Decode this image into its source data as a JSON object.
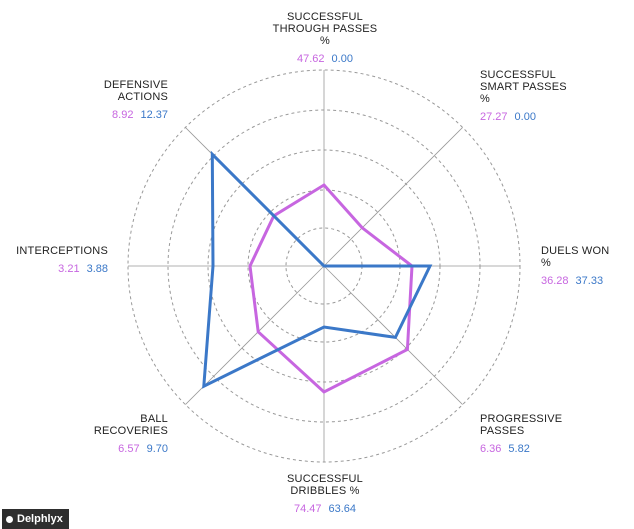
{
  "chart_data": {
    "type": "radar",
    "axes": [
      {
        "label": [
          "SUCCESSFUL",
          "THROUGH PASSES",
          "%"
        ],
        "values": [
          "47.62",
          "0.00"
        ],
        "scale": [
          81,
          0
        ]
      },
      {
        "label": [
          "SUCCESSFUL",
          "SMART PASSES",
          "%"
        ],
        "values": [
          "27.27",
          "0.00"
        ],
        "scale": [
          54,
          0
        ]
      },
      {
        "label": [
          "DUELS WON",
          "%"
        ],
        "values": [
          "36.28",
          "37.33"
        ],
        "scale": [
          88,
          106
        ]
      },
      {
        "label": [
          "PROGRESSIVE",
          "PASSES"
        ],
        "values": [
          "6.36",
          "5.82"
        ],
        "scale": [
          118,
          101
        ]
      },
      {
        "label": [
          "SUCCESSFUL",
          "DRIBBLES %"
        ],
        "values": [
          "74.47",
          "63.64"
        ],
        "scale": [
          126,
          61
        ]
      },
      {
        "label": [
          "BALL",
          "RECOVERIES"
        ],
        "values": [
          "6.57",
          "9.70"
        ],
        "scale": [
          93,
          170
        ]
      },
      {
        "label": [
          "INTERCEPTIONS"
        ],
        "values": [
          "3.21",
          "3.88"
        ],
        "scale": [
          74,
          111
        ]
      },
      {
        "label": [
          "DEFENSIVE",
          "ACTIONS"
        ],
        "values": [
          "8.92",
          "12.37"
        ],
        "scale": [
          71,
          158
        ]
      }
    ],
    "series": [
      {
        "color": "#c766e0"
      },
      {
        "color": "#3b78c8"
      }
    ],
    "grid": true
  },
  "brand": {
    "name": "Delphlyx"
  },
  "colors": {
    "grid": "#999999",
    "axis": "#999999",
    "text": "#222222"
  }
}
